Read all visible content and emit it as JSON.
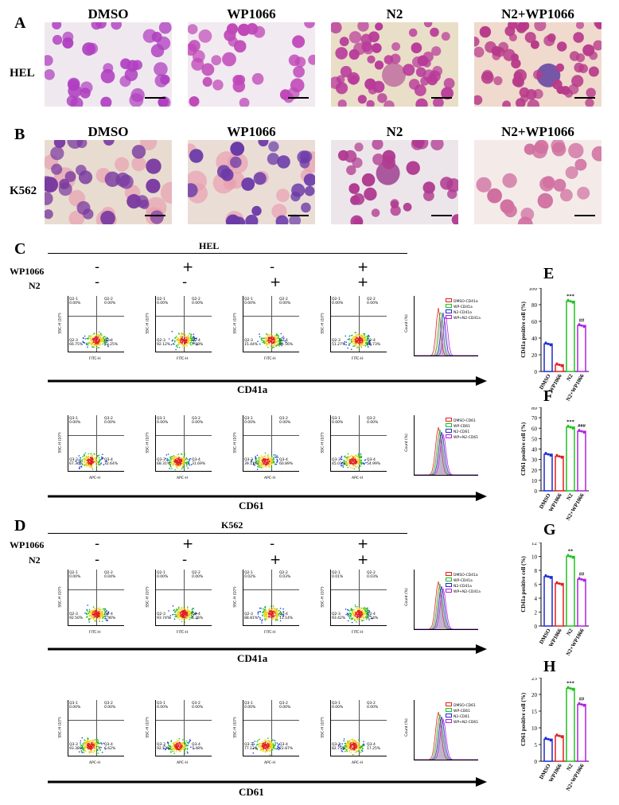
{
  "panels": {
    "A": "A",
    "B": "B",
    "C": "C",
    "D": "D",
    "E": "E",
    "F": "F",
    "G": "G",
    "H": "H"
  },
  "groups": [
    "DMSO",
    "WP1066",
    "N2",
    "N2+WP1066"
  ],
  "rows": {
    "A": "HEL",
    "B": "K562"
  },
  "flow_C": {
    "cell_line": "HEL",
    "treat_wp": "WP1066",
    "treat_n2": "N2",
    "wp_signs": [
      "-",
      "+",
      "-",
      "+"
    ],
    "n2_signs": [
      "-",
      "-",
      "+",
      "+"
    ],
    "cd41a_label": "CD41a",
    "cd61_label": "CD61",
    "cd41a_q2_1": [
      "0.00%",
      "0.00%",
      "0.00%",
      "0.00%"
    ],
    "cd41a_q2_2": [
      "0.00%",
      "0.00%",
      "0.00%",
      "0.00%"
    ],
    "cd41a_q2_3": [
      "66.75%",
      "92.12%",
      "15.44%",
      "51.27%"
    ],
    "cd41a_q2_4": [
      "33.25%",
      "7.88%",
      "84.56%",
      "48.73%"
    ],
    "cd61_q3_1": [
      "0.00%",
      "0.00%",
      "0.00%",
      "0.00%"
    ],
    "cd61_q3_2": [
      "0.00%",
      "0.00%",
      "0.00%",
      "0.00%"
    ],
    "cd61_q3_3": [
      "67.36%",
      "68.31%",
      "39.11%",
      "45.01%"
    ],
    "cd61_q3_4": [
      "32.64%",
      "31.69%",
      "60.89%",
      "54.99%"
    ],
    "legend_cd41a": [
      "DMSO-CD41a",
      "WP-CD41a",
      "N2-CD41a",
      "WP+N2-CD41a"
    ],
    "legend_cd61": [
      "DMSO-CD61",
      "WP-CD61",
      "N2-CD61",
      "WP+N2-CD61"
    ]
  },
  "flow_D": {
    "cell_line": "K562",
    "treat_wp": "WP1066",
    "treat_n2": "N2",
    "wp_signs": [
      "-",
      "+",
      "-",
      "+"
    ],
    "n2_signs": [
      "-",
      "-",
      "+",
      "+"
    ],
    "cd41a_label": "CD41a",
    "cd61_label": "CD61",
    "cd41a_q2_1": [
      "0.00%",
      "0.00%",
      "0.02%",
      "0.01%"
    ],
    "cd41a_q2_2": [
      "0.04%",
      "0.00%",
      "0.03%",
      "0.03%"
    ],
    "cd41a_q2_3": [
      "92.50%",
      "93.74%",
      "88.81%",
      "93.42%"
    ],
    "cd41a_q2_4": [
      "7.46%",
      "6.26%",
      "11.14%",
      "6.54%"
    ],
    "cd61_q3_1": [
      "0.00%",
      "0.00%",
      "0.00%",
      "0.00%"
    ],
    "cd61_q3_2": [
      "0.00%",
      "0.00%",
      "0.00%",
      "0.00%"
    ],
    "cd61_q3_3": [
      "93.38%",
      "92.52%",
      "77.13%",
      "82.75%"
    ],
    "cd61_q3_4": [
      "6.62%",
      "7.48%",
      "22.87%",
      "17.25%"
    ],
    "legend_cd41a": [
      "DMSO-CD41a",
      "WP-CD41a",
      "N2-CD41a",
      "WP+N2-CD41a"
    ],
    "legend_cd61": [
      "DMSO-CD61",
      "WP-CD61",
      "N2-CD61",
      "WP+N2-CD61"
    ]
  },
  "flow_axes": {
    "ssc": "SSC-H (10⁵)",
    "fitc": "FITC-H",
    "apc": "APC-H",
    "count": "Count (%)"
  },
  "colors": {
    "dmso": "#1f2bd1",
    "wp": "#e02020",
    "n2": "#20c020",
    "n2wp": "#b020e0"
  },
  "chart_data": [
    {
      "type": "bar",
      "panel": "E",
      "categories": [
        "DMSO",
        "WP1066",
        "N2",
        "N2+WP1066"
      ],
      "values": [
        33,
        8,
        84,
        55
      ],
      "ylabel": "CD41a positive cell (%)",
      "ylim": [
        0,
        100
      ],
      "yticks": [
        "0",
        "20",
        "40",
        "60",
        "80",
        "100"
      ],
      "annotations": [
        "",
        "",
        "***",
        "##"
      ]
    },
    {
      "type": "bar",
      "panel": "F",
      "categories": [
        "DMSO",
        "WP1066",
        "N2",
        "N2+WP1066"
      ],
      "values": [
        35,
        33,
        61,
        57
      ],
      "ylabel": "CD61 positive cell (%)",
      "ylim": [
        0,
        80
      ],
      "yticks": [
        "0",
        "10",
        "20",
        "30",
        "40",
        "50",
        "60",
        "70",
        "80"
      ],
      "annotations": [
        "",
        "",
        "***",
        "###"
      ]
    },
    {
      "type": "bar",
      "panel": "G",
      "categories": [
        "DMSO",
        "WP1066",
        "N2",
        "N2+WP1066"
      ],
      "values": [
        7.1,
        6.1,
        10,
        6.7
      ],
      "ylabel": "CD41a positive cell (%)",
      "ylim": [
        0,
        12
      ],
      "yticks": [
        "0",
        "2",
        "4",
        "6",
        "8",
        "10",
        "12"
      ],
      "annotations": [
        "",
        "",
        "**",
        "##"
      ]
    },
    {
      "type": "bar",
      "panel": "H",
      "categories": [
        "DMSO",
        "WP1066",
        "N2",
        "N2+WP1066"
      ],
      "values": [
        6.6,
        7.6,
        21.8,
        17
      ],
      "ylabel": "CD61 positive cell (%)",
      "ylim": [
        0,
        25
      ],
      "yticks": [
        "0",
        "5",
        "10",
        "15",
        "20",
        "25"
      ],
      "annotations": [
        "",
        "",
        "***",
        "##"
      ]
    }
  ]
}
